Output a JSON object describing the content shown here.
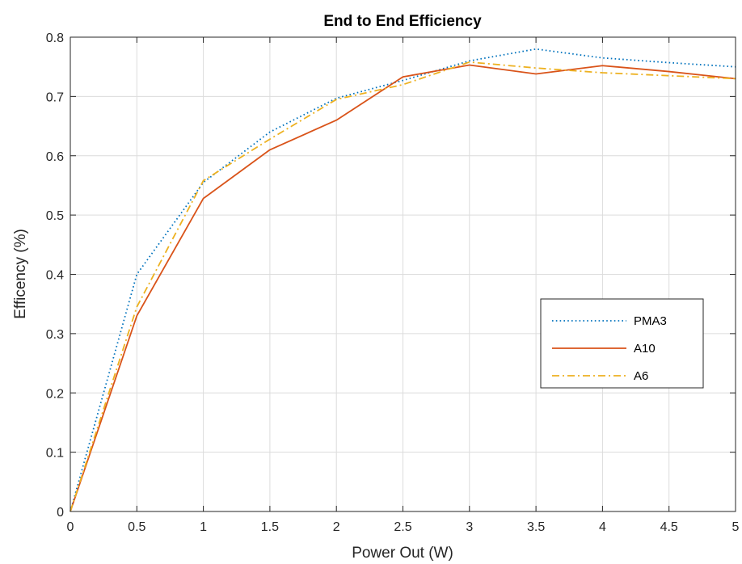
{
  "chart_data": {
    "type": "line",
    "title": "End to End Efficiency",
    "xlabel": "Power Out (W)",
    "ylabel": "Efficency (%)",
    "xlim": [
      0,
      5
    ],
    "ylim": [
      0,
      0.8
    ],
    "xticks": [
      "0",
      "0.5",
      "1",
      "1.5",
      "2",
      "2.5",
      "3",
      "3.5",
      "4",
      "4.5",
      "5"
    ],
    "yticks": [
      "0",
      "0.1",
      "0.2",
      "0.3",
      "0.4",
      "0.5",
      "0.6",
      "0.7",
      "0.8"
    ],
    "grid": true,
    "legend_position": "right",
    "x": [
      0,
      0.5,
      1,
      1.5,
      2,
      2.5,
      3,
      3.5,
      4,
      4.5,
      5
    ],
    "series": [
      {
        "name": "PMA3",
        "color": "#0072BD",
        "style": "dotted",
        "values": [
          0,
          0.4,
          0.555,
          0.64,
          0.697,
          0.727,
          0.76,
          0.78,
          0.765,
          0.757,
          0.75
        ]
      },
      {
        "name": "A10",
        "color": "#D95319",
        "style": "solid",
        "values": [
          0,
          0.33,
          0.528,
          0.61,
          0.66,
          0.733,
          0.753,
          0.738,
          0.752,
          0.742,
          0.73
        ]
      },
      {
        "name": "A6",
        "color": "#EDB120",
        "style": "dashdot",
        "values": [
          0,
          0.345,
          0.558,
          0.628,
          0.695,
          0.72,
          0.758,
          0.748,
          0.74,
          0.735,
          0.73
        ]
      }
    ]
  }
}
